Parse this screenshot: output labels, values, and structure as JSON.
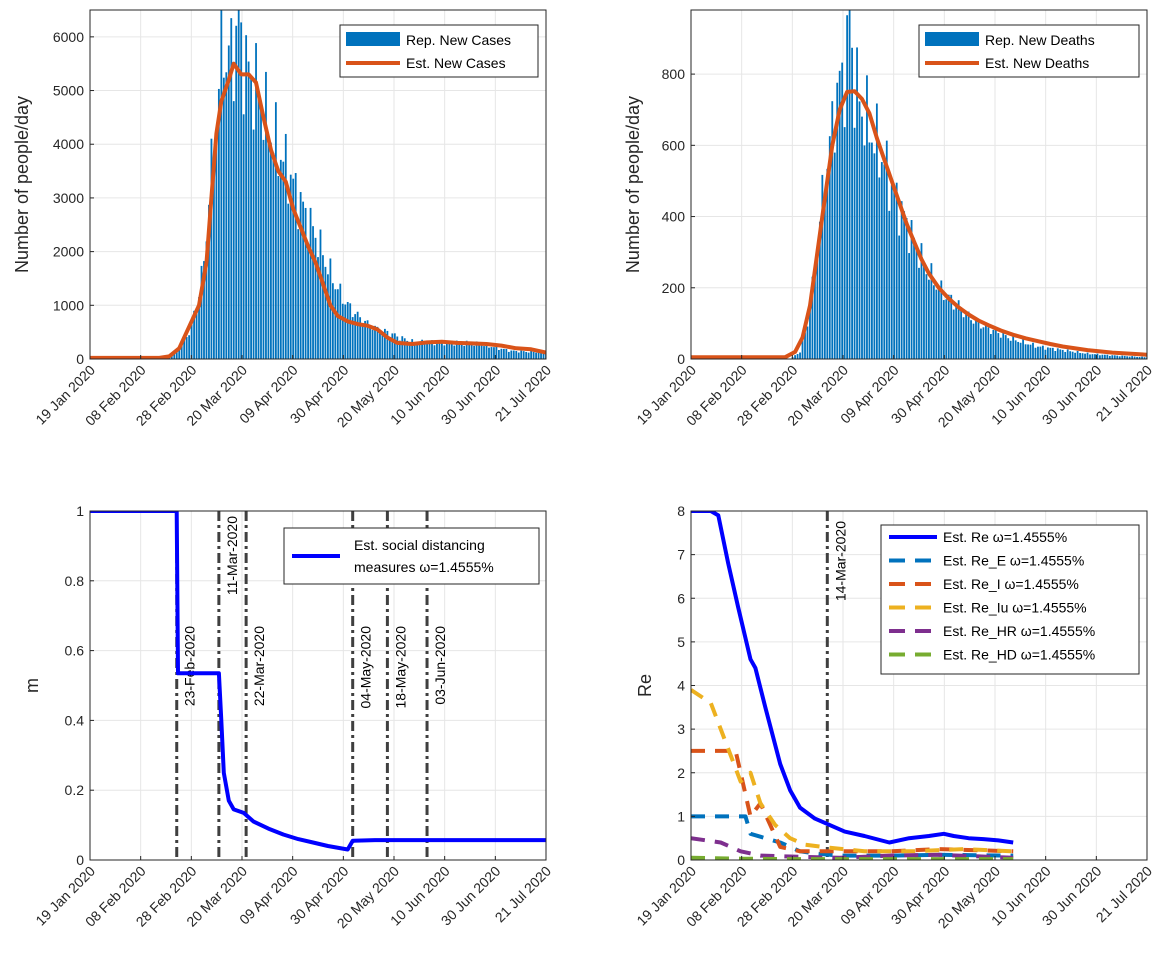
{
  "colors": {
    "bar": "#0072BD",
    "orange": "#D95319",
    "blue": "#0000FF",
    "yellow": "#EDB120",
    "purple": "#7E2F8E",
    "green": "#77AC30",
    "vline": "#3f3f3f",
    "grid": "#e6e6e6"
  },
  "date_ticks": [
    "19 Jan 2020",
    "08 Feb 2020",
    "28 Feb 2020",
    "20 Mar 2020",
    "09 Apr 2020",
    "30 Apr 2020",
    "20 May 2020",
    "10 Jun 2020",
    "30 Jun 2020",
    "21 Jul 2020"
  ],
  "chart_data": [
    {
      "type": "bar",
      "ylabel": "Number of people/day",
      "xlim": [
        "19 Jan 2020",
        "21 Jul 2020"
      ],
      "ylim": [
        0,
        6500
      ],
      "yticks": [
        "0",
        "1000",
        "2000",
        "3000",
        "4000",
        "5000",
        "6000"
      ],
      "legend": {
        "position": "top-right",
        "entries": [
          "Rep. New Cases",
          "Est. New Cases"
        ]
      },
      "grid": true,
      "bars": [
        [
          0,
          0
        ],
        [
          30,
          0
        ],
        [
          36,
          200
        ],
        [
          40,
          500
        ],
        [
          43,
          1000
        ],
        [
          46,
          1800
        ],
        [
          48,
          3000
        ],
        [
          50,
          4100
        ],
        [
          52,
          5000
        ],
        [
          53,
          6500
        ],
        [
          55,
          5500
        ],
        [
          58,
          5800
        ],
        [
          60,
          6200
        ],
        [
          62,
          5600
        ],
        [
          65,
          5200
        ],
        [
          68,
          5000
        ],
        [
          72,
          4300
        ],
        [
          76,
          3900
        ],
        [
          80,
          3500
        ],
        [
          84,
          3000
        ],
        [
          88,
          2600
        ],
        [
          92,
          2200
        ],
        [
          96,
          1700
        ],
        [
          100,
          1300
        ],
        [
          104,
          1000
        ],
        [
          108,
          800
        ],
        [
          112,
          650
        ],
        [
          116,
          550
        ],
        [
          120,
          500
        ],
        [
          125,
          400
        ],
        [
          130,
          320
        ],
        [
          135,
          300
        ],
        [
          140,
          300
        ],
        [
          145,
          320
        ],
        [
          150,
          300
        ],
        [
          155,
          280
        ],
        [
          160,
          250
        ],
        [
          165,
          200
        ],
        [
          170,
          150
        ],
        [
          184,
          120
        ]
      ],
      "est": [
        [
          0,
          20
        ],
        [
          28,
          20
        ],
        [
          32,
          50
        ],
        [
          36,
          200
        ],
        [
          40,
          600
        ],
        [
          44,
          1000
        ],
        [
          47,
          1800
        ],
        [
          49,
          3000
        ],
        [
          51,
          4200
        ],
        [
          53,
          4800
        ],
        [
          56,
          5200
        ],
        [
          58,
          5500
        ],
        [
          61,
          5300
        ],
        [
          64,
          5300
        ],
        [
          67,
          5150
        ],
        [
          70,
          4500
        ],
        [
          73,
          3900
        ],
        [
          76,
          3500
        ],
        [
          79,
          3300
        ],
        [
          82,
          2800
        ],
        [
          85,
          2450
        ],
        [
          88,
          2100
        ],
        [
          91,
          1800
        ],
        [
          94,
          1400
        ],
        [
          97,
          1000
        ],
        [
          100,
          800
        ],
        [
          104,
          700
        ],
        [
          108,
          650
        ],
        [
          112,
          620
        ],
        [
          116,
          550
        ],
        [
          120,
          400
        ],
        [
          124,
          300
        ],
        [
          130,
          280
        ],
        [
          136,
          310
        ],
        [
          142,
          320
        ],
        [
          148,
          300
        ],
        [
          154,
          290
        ],
        [
          160,
          280
        ],
        [
          166,
          250
        ],
        [
          172,
          200
        ],
        [
          178,
          180
        ],
        [
          184,
          120
        ]
      ]
    },
    {
      "type": "bar",
      "ylabel": "Number of people/day",
      "xlim": [
        "19 Jan 2020",
        "21 Jul 2020"
      ],
      "ylim": [
        0,
        980
      ],
      "yticks": [
        "0",
        "200",
        "400",
        "600",
        "800"
      ],
      "legend": {
        "position": "top-right",
        "entries": [
          "Rep. New Deaths",
          "Est. New Deaths"
        ]
      },
      "grid": true,
      "bars": [
        [
          0,
          0
        ],
        [
          40,
          0
        ],
        [
          44,
          20
        ],
        [
          47,
          100
        ],
        [
          50,
          250
        ],
        [
          53,
          450
        ],
        [
          56,
          600
        ],
        [
          59,
          750
        ],
        [
          62,
          800
        ],
        [
          64,
          950
        ],
        [
          66,
          780
        ],
        [
          69,
          700
        ],
        [
          72,
          650
        ],
        [
          75,
          600
        ],
        [
          78,
          550
        ],
        [
          81,
          480
        ],
        [
          84,
          430
        ],
        [
          87,
          380
        ],
        [
          90,
          330
        ],
        [
          93,
          280
        ],
        [
          96,
          240
        ],
        [
          100,
          200
        ],
        [
          104,
          170
        ],
        [
          108,
          150
        ],
        [
          112,
          120
        ],
        [
          116,
          100
        ],
        [
          120,
          85
        ],
        [
          125,
          70
        ],
        [
          130,
          55
        ],
        [
          135,
          45
        ],
        [
          140,
          35
        ],
        [
          145,
          30
        ],
        [
          150,
          25
        ],
        [
          155,
          20
        ],
        [
          160,
          15
        ],
        [
          170,
          10
        ],
        [
          184,
          5
        ]
      ],
      "est": [
        [
          0,
          5
        ],
        [
          38,
          5
        ],
        [
          42,
          20
        ],
        [
          45,
          60
        ],
        [
          48,
          150
        ],
        [
          51,
          300
        ],
        [
          54,
          450
        ],
        [
          57,
          600
        ],
        [
          60,
          700
        ],
        [
          63,
          750
        ],
        [
          66,
          752
        ],
        [
          69,
          730
        ],
        [
          72,
          690
        ],
        [
          75,
          620
        ],
        [
          78,
          560
        ],
        [
          81,
          500
        ],
        [
          84,
          440
        ],
        [
          87,
          380
        ],
        [
          90,
          330
        ],
        [
          93,
          280
        ],
        [
          96,
          240
        ],
        [
          100,
          200
        ],
        [
          104,
          170
        ],
        [
          108,
          145
        ],
        [
          112,
          125
        ],
        [
          116,
          108
        ],
        [
          120,
          95
        ],
        [
          125,
          80
        ],
        [
          130,
          68
        ],
        [
          135,
          58
        ],
        [
          140,
          50
        ],
        [
          145,
          42
        ],
        [
          150,
          35
        ],
        [
          160,
          25
        ],
        [
          170,
          18
        ],
        [
          184,
          12
        ]
      ]
    },
    {
      "type": "line",
      "ylabel": "m",
      "xlim": [
        "19 Jan 2020",
        "21 Jul 2020"
      ],
      "ylim": [
        0,
        1
      ],
      "yticks": [
        "0",
        "0.2",
        "0.4",
        "0.6",
        "0.8",
        "1"
      ],
      "legend": {
        "position": "top-right",
        "entries": [
          "Est. social distancing",
          "measures ω=1.4555%"
        ]
      },
      "grid": true,
      "series": [
        {
          "points": [
            [
              0,
              1
            ],
            [
              35,
              1
            ],
            [
              35.5,
              0.535
            ],
            [
              52,
              0.535
            ],
            [
              53,
              0.4
            ],
            [
              54,
              0.25
            ],
            [
              56,
              0.17
            ],
            [
              58,
              0.145
            ],
            [
              62,
              0.135
            ],
            [
              66,
              0.11
            ],
            [
              72,
              0.09
            ],
            [
              78,
              0.073
            ],
            [
              84,
              0.06
            ],
            [
              90,
              0.05
            ],
            [
              96,
              0.04
            ],
            [
              104,
              0.03
            ],
            [
              106,
              0.055
            ],
            [
              115,
              0.057
            ],
            [
              130,
              0.057
            ],
            [
              150,
              0.057
            ],
            [
              184,
              0.057
            ]
          ]
        }
      ],
      "event_lines": [
        {
          "x": 35,
          "label": "23-Feb-2020"
        },
        {
          "x": 52,
          "label": "11-Mar-2020"
        },
        {
          "x": 63,
          "label": "22-Mar-2020"
        },
        {
          "x": 106,
          "label": "04-May-2020"
        },
        {
          "x": 120,
          "label": "18-May-2020"
        },
        {
          "x": 136,
          "label": "03-Jun-2020"
        }
      ]
    },
    {
      "type": "line",
      "ylabel": "Re",
      "xlim": [
        "19 Jan 2020",
        "21 Jul 2020"
      ],
      "ylim": [
        0,
        8
      ],
      "yticks": [
        "0",
        "1",
        "2",
        "3",
        "4",
        "5",
        "6",
        "7",
        "8"
      ],
      "legend": {
        "position": "top-right",
        "entries": [
          "Est. Re ω=1.4555%",
          "Est. Re_E ω=1.4555%",
          "Est. Re_I ω=1.4555%",
          "Est. Re_Iu ω=1.4555%",
          "Est. Re_HR ω=1.4555%",
          "Est. Re_HD ω=1.4555%"
        ]
      },
      "grid": true,
      "event_lines": [
        {
          "x": 55,
          "label": "14-Mar-2020"
        }
      ],
      "series": [
        {
          "name": "Est. Re ω=1.4555%",
          "style": "solid",
          "points": [
            [
              0,
              8
            ],
            [
              8,
              8
            ],
            [
              11,
              7.9
            ],
            [
              15,
              6.8
            ],
            [
              19,
              5.8
            ],
            [
              24,
              4.6
            ],
            [
              26,
              4.4
            ],
            [
              30,
              3.5
            ],
            [
              36,
              2.2
            ],
            [
              40,
              1.6
            ],
            [
              44,
              1.2
            ],
            [
              50,
              0.95
            ],
            [
              56,
              0.8
            ],
            [
              62,
              0.65
            ],
            [
              70,
              0.55
            ],
            [
              80,
              0.4
            ],
            [
              88,
              0.5
            ],
            [
              96,
              0.55
            ],
            [
              102,
              0.6
            ],
            [
              106,
              0.55
            ],
            [
              112,
              0.5
            ],
            [
              118,
              0.48
            ],
            [
              124,
              0.45
            ],
            [
              130,
              0.4
            ]
          ]
        },
        {
          "name": "Est. Re_E ω=1.4555%",
          "style": "dashed",
          "points": [
            [
              0,
              1
            ],
            [
              22,
              1
            ],
            [
              24,
              0.6
            ],
            [
              30,
              0.5
            ],
            [
              36,
              0.4
            ],
            [
              40,
              0.3
            ],
            [
              44,
              0.2
            ],
            [
              50,
              0.15
            ],
            [
              60,
              0.1
            ],
            [
              80,
              0.1
            ],
            [
              100,
              0.12
            ],
            [
              130,
              0.1
            ]
          ]
        },
        {
          "name": "Est. Re_I ω=1.4555%",
          "style": "dashed",
          "points": [
            [
              0,
              2.5
            ],
            [
              18,
              2.5
            ],
            [
              20,
              2.0
            ],
            [
              24,
              1.0
            ],
            [
              28,
              1.3
            ],
            [
              32,
              0.8
            ],
            [
              36,
              0.3
            ],
            [
              44,
              0.2
            ],
            [
              60,
              0.2
            ],
            [
              80,
              0.2
            ],
            [
              100,
              0.25
            ],
            [
              130,
              0.2
            ]
          ]
        },
        {
          "name": "Est. Re_Iu ω=1.4555%",
          "style": "dashed",
          "points": [
            [
              0,
              3.9
            ],
            [
              8,
              3.6
            ],
            [
              14,
              2.7
            ],
            [
              20,
              1.8
            ],
            [
              24,
              2.0
            ],
            [
              28,
              1.3
            ],
            [
              34,
              0.8
            ],
            [
              40,
              0.5
            ],
            [
              46,
              0.35
            ],
            [
              56,
              0.28
            ],
            [
              70,
              0.2
            ],
            [
              90,
              0.2
            ],
            [
              110,
              0.25
            ],
            [
              130,
              0.2
            ]
          ]
        },
        {
          "name": "Est. Re_HR ω=1.4555%",
          "style": "dashed",
          "points": [
            [
              0,
              0.5
            ],
            [
              12,
              0.4
            ],
            [
              20,
              0.2
            ],
            [
              28,
              0.1
            ],
            [
              40,
              0.08
            ],
            [
              60,
              0.05
            ],
            [
              80,
              0.1
            ],
            [
              100,
              0.12
            ],
            [
              130,
              0.05
            ]
          ]
        },
        {
          "name": "Est. Re_HD ω=1.4555%",
          "style": "dashed",
          "points": [
            [
              0,
              0.05
            ],
            [
              20,
              0.03
            ],
            [
              40,
              0.02
            ],
            [
              60,
              0.02
            ],
            [
              100,
              0.02
            ],
            [
              130,
              0.02
            ]
          ]
        }
      ]
    }
  ]
}
